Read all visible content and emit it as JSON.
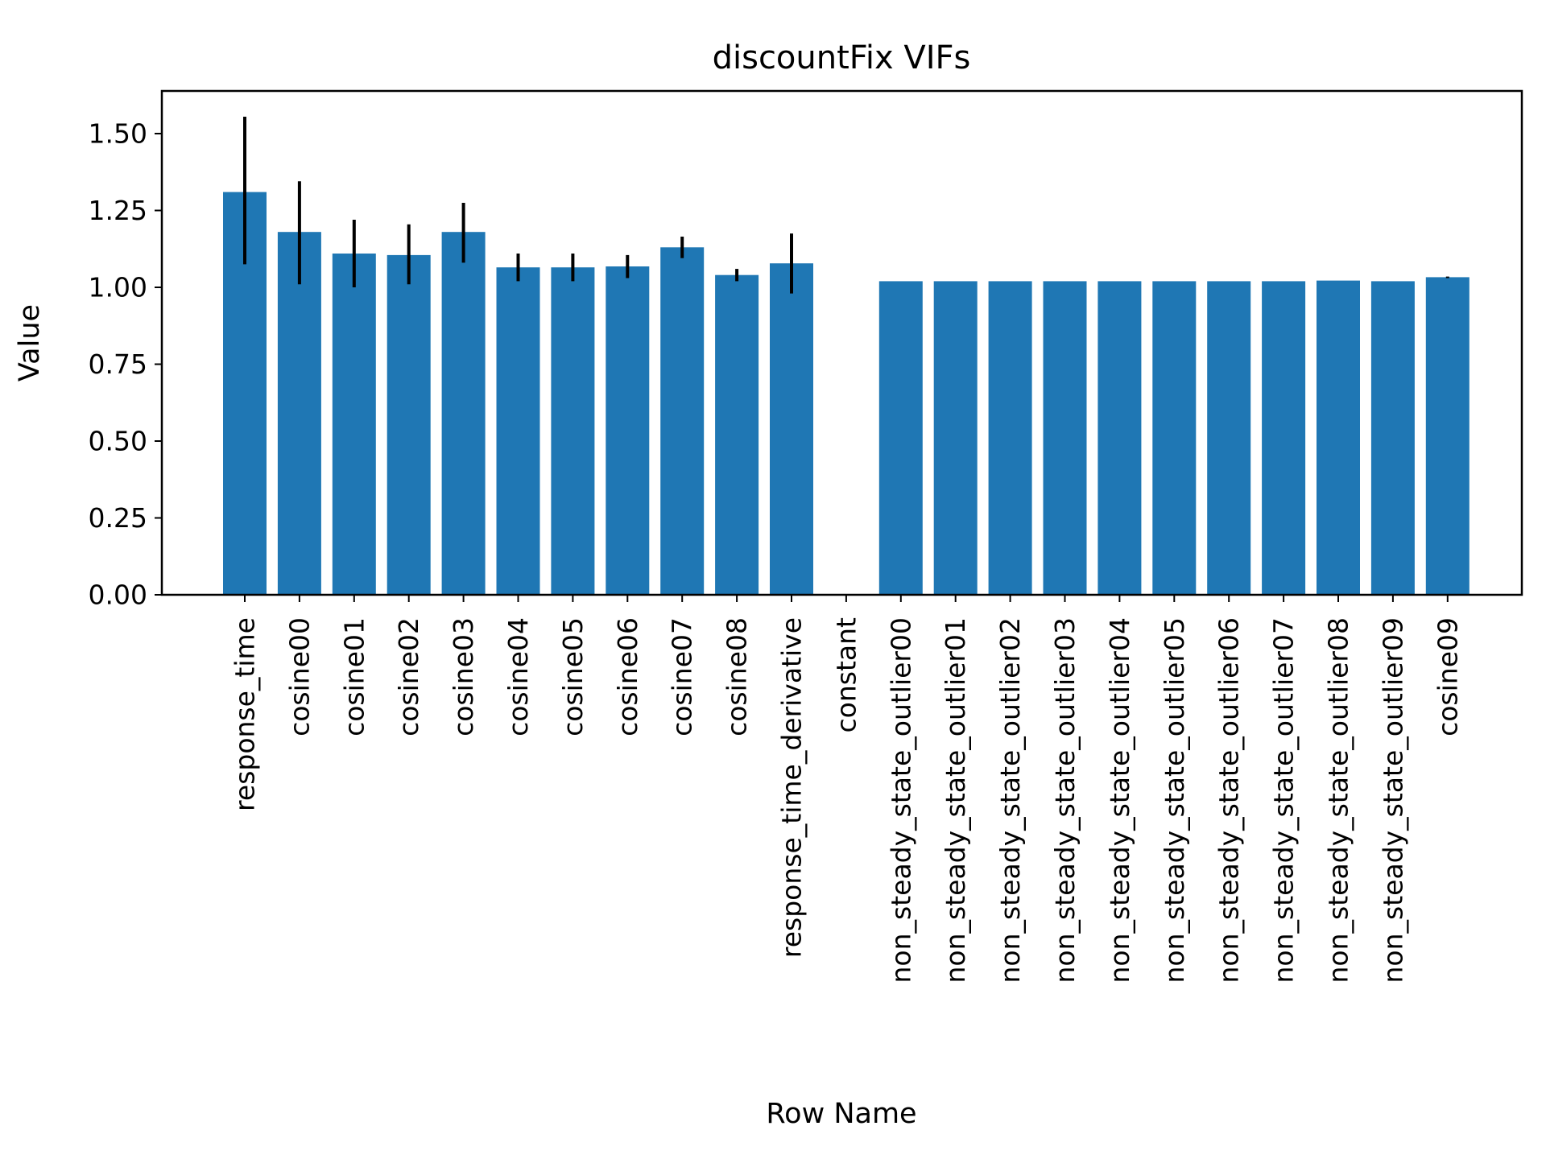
{
  "chart_data": {
    "type": "bar",
    "title": "discountFix VIFs",
    "xlabel": "Row Name",
    "ylabel": "Value",
    "ylim": [
      0,
      1.64
    ],
    "yticks": [
      "0.00",
      "0.25",
      "0.50",
      "0.75",
      "1.00",
      "1.25",
      "1.50"
    ],
    "ytick_values": [
      0,
      0.25,
      0.5,
      0.75,
      1.0,
      1.25,
      1.5
    ],
    "grid": false,
    "bar_color": "#1f77b4",
    "errorbar_color": "#000000",
    "categories": [
      "response_time",
      "cosine00",
      "cosine01",
      "cosine02",
      "cosine03",
      "cosine04",
      "cosine05",
      "cosine06",
      "cosine07",
      "cosine08",
      "response_time_derivative",
      "constant",
      "non_steady_state_outlier00",
      "non_steady_state_outlier01",
      "non_steady_state_outlier02",
      "non_steady_state_outlier03",
      "non_steady_state_outlier04",
      "non_steady_state_outlier05",
      "non_steady_state_outlier06",
      "non_steady_state_outlier07",
      "non_steady_state_outlier08",
      "non_steady_state_outlier09",
      "cosine09"
    ],
    "values": [
      1.31,
      1.18,
      1.11,
      1.105,
      1.18,
      1.065,
      1.065,
      1.068,
      1.13,
      1.04,
      1.078,
      null,
      1.02,
      1.02,
      1.02,
      1.02,
      1.02,
      1.02,
      1.02,
      1.02,
      1.022,
      1.02,
      1.033
    ],
    "error_low": [
      1.075,
      1.01,
      1.0,
      1.01,
      1.08,
      1.02,
      1.02,
      1.03,
      1.095,
      1.02,
      0.98,
      null,
      1.02,
      1.02,
      1.02,
      1.02,
      1.02,
      1.02,
      1.02,
      1.02,
      1.022,
      1.02,
      1.03
    ],
    "error_high": [
      1.555,
      1.345,
      1.22,
      1.205,
      1.275,
      1.11,
      1.11,
      1.105,
      1.165,
      1.06,
      1.175,
      null,
      1.02,
      1.02,
      1.02,
      1.02,
      1.02,
      1.02,
      1.02,
      1.02,
      1.022,
      1.02,
      1.035
    ]
  }
}
